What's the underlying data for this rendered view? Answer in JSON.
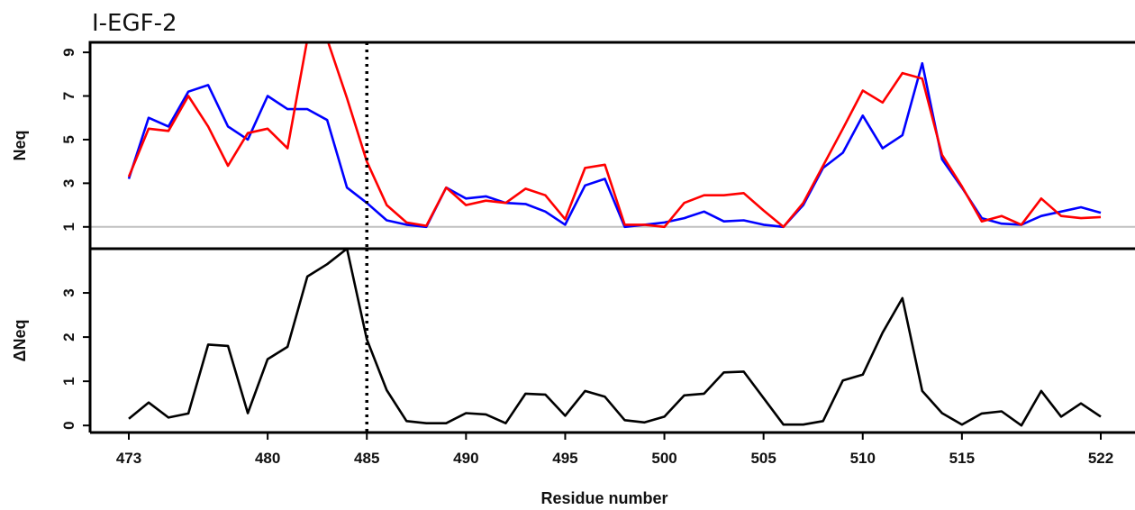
{
  "chart_data": [
    {
      "type": "line",
      "title": "I-EGF-2",
      "ylabel": "Neq",
      "xlim": [
        473,
        522
      ],
      "ylim": [
        0,
        9.5
      ],
      "yticks": [
        1,
        3,
        5,
        7,
        9
      ],
      "reference_line_y": 1,
      "reference_line_color": "#c0c0c0",
      "vertical_marker_x": 485,
      "x": [
        473,
        474,
        475,
        476,
        477,
        478,
        479,
        480,
        481,
        482,
        483,
        484,
        485,
        486,
        487,
        488,
        489,
        490,
        491,
        492,
        493,
        494,
        495,
        496,
        497,
        498,
        499,
        500,
        501,
        502,
        503,
        504,
        505,
        506,
        507,
        508,
        509,
        510,
        511,
        512,
        513,
        514,
        515,
        516,
        517,
        518,
        519,
        520,
        521,
        522
      ],
      "series": [
        {
          "color": "#0000ff",
          "values": [
            3.2,
            6.0,
            5.6,
            7.2,
            7.5,
            5.6,
            5.0,
            7.0,
            6.4,
            6.4,
            5.9,
            2.8,
            2.1,
            1.3,
            1.1,
            1.0,
            2.8,
            2.3,
            2.4,
            2.1,
            2.05,
            1.7,
            1.1,
            2.9,
            3.2,
            1.0,
            1.1,
            1.2,
            1.4,
            1.7,
            1.25,
            1.3,
            1.1,
            1.0,
            2.0,
            3.7,
            4.4,
            6.1,
            4.6,
            5.2,
            8.5,
            4.1,
            2.8,
            1.4,
            1.15,
            1.1,
            1.5,
            1.7,
            1.9,
            1.65
          ]
        },
        {
          "color": "#ff0000",
          "values": [
            3.3,
            5.5,
            5.4,
            7.0,
            5.6,
            3.8,
            5.3,
            5.5,
            4.6,
            9.6,
            9.6,
            6.9,
            4.0,
            2.0,
            1.2,
            1.05,
            2.8,
            2.0,
            2.2,
            2.1,
            2.75,
            2.45,
            1.35,
            3.7,
            3.85,
            1.1,
            1.1,
            1.0,
            2.1,
            2.45,
            2.45,
            2.55,
            1.75,
            1.0,
            2.1,
            3.8,
            5.5,
            7.25,
            6.7,
            8.05,
            7.8,
            4.3,
            2.85,
            1.25,
            1.5,
            1.1,
            2.3,
            1.5,
            1.4,
            1.45
          ]
        }
      ]
    },
    {
      "type": "line",
      "xlabel": "Residue number",
      "ylabel": "ΔNeq",
      "xlim": [
        473,
        522
      ],
      "ylim": [
        -0.2,
        4.0
      ],
      "yticks": [
        0,
        1,
        2,
        3
      ],
      "xticks": [
        473,
        480,
        485,
        490,
        495,
        500,
        505,
        510,
        515,
        522
      ],
      "vertical_marker_x": 485,
      "x": [
        473,
        474,
        475,
        476,
        477,
        478,
        479,
        480,
        481,
        482,
        483,
        484,
        485,
        486,
        487,
        488,
        489,
        490,
        491,
        492,
        493,
        494,
        495,
        496,
        497,
        498,
        499,
        500,
        501,
        502,
        503,
        504,
        505,
        506,
        507,
        508,
        509,
        510,
        511,
        512,
        513,
        514,
        515,
        516,
        517,
        518,
        519,
        520,
        521,
        522
      ],
      "series": [
        {
          "color": "#000000",
          "values": [
            0.15,
            0.52,
            0.18,
            0.27,
            1.83,
            1.8,
            0.28,
            1.5,
            1.78,
            3.37,
            3.65,
            4.0,
            1.95,
            0.8,
            0.1,
            0.05,
            0.05,
            0.28,
            0.25,
            0.05,
            0.72,
            0.7,
            0.22,
            0.78,
            0.65,
            0.12,
            0.07,
            0.2,
            0.68,
            0.72,
            1.2,
            1.22,
            0.62,
            0.02,
            0.02,
            0.1,
            1.02,
            1.15,
            2.1,
            2.88,
            0.78,
            0.28,
            0.02,
            0.27,
            0.32,
            0.0,
            0.78,
            0.2,
            0.5,
            0.2
          ]
        }
      ]
    }
  ]
}
